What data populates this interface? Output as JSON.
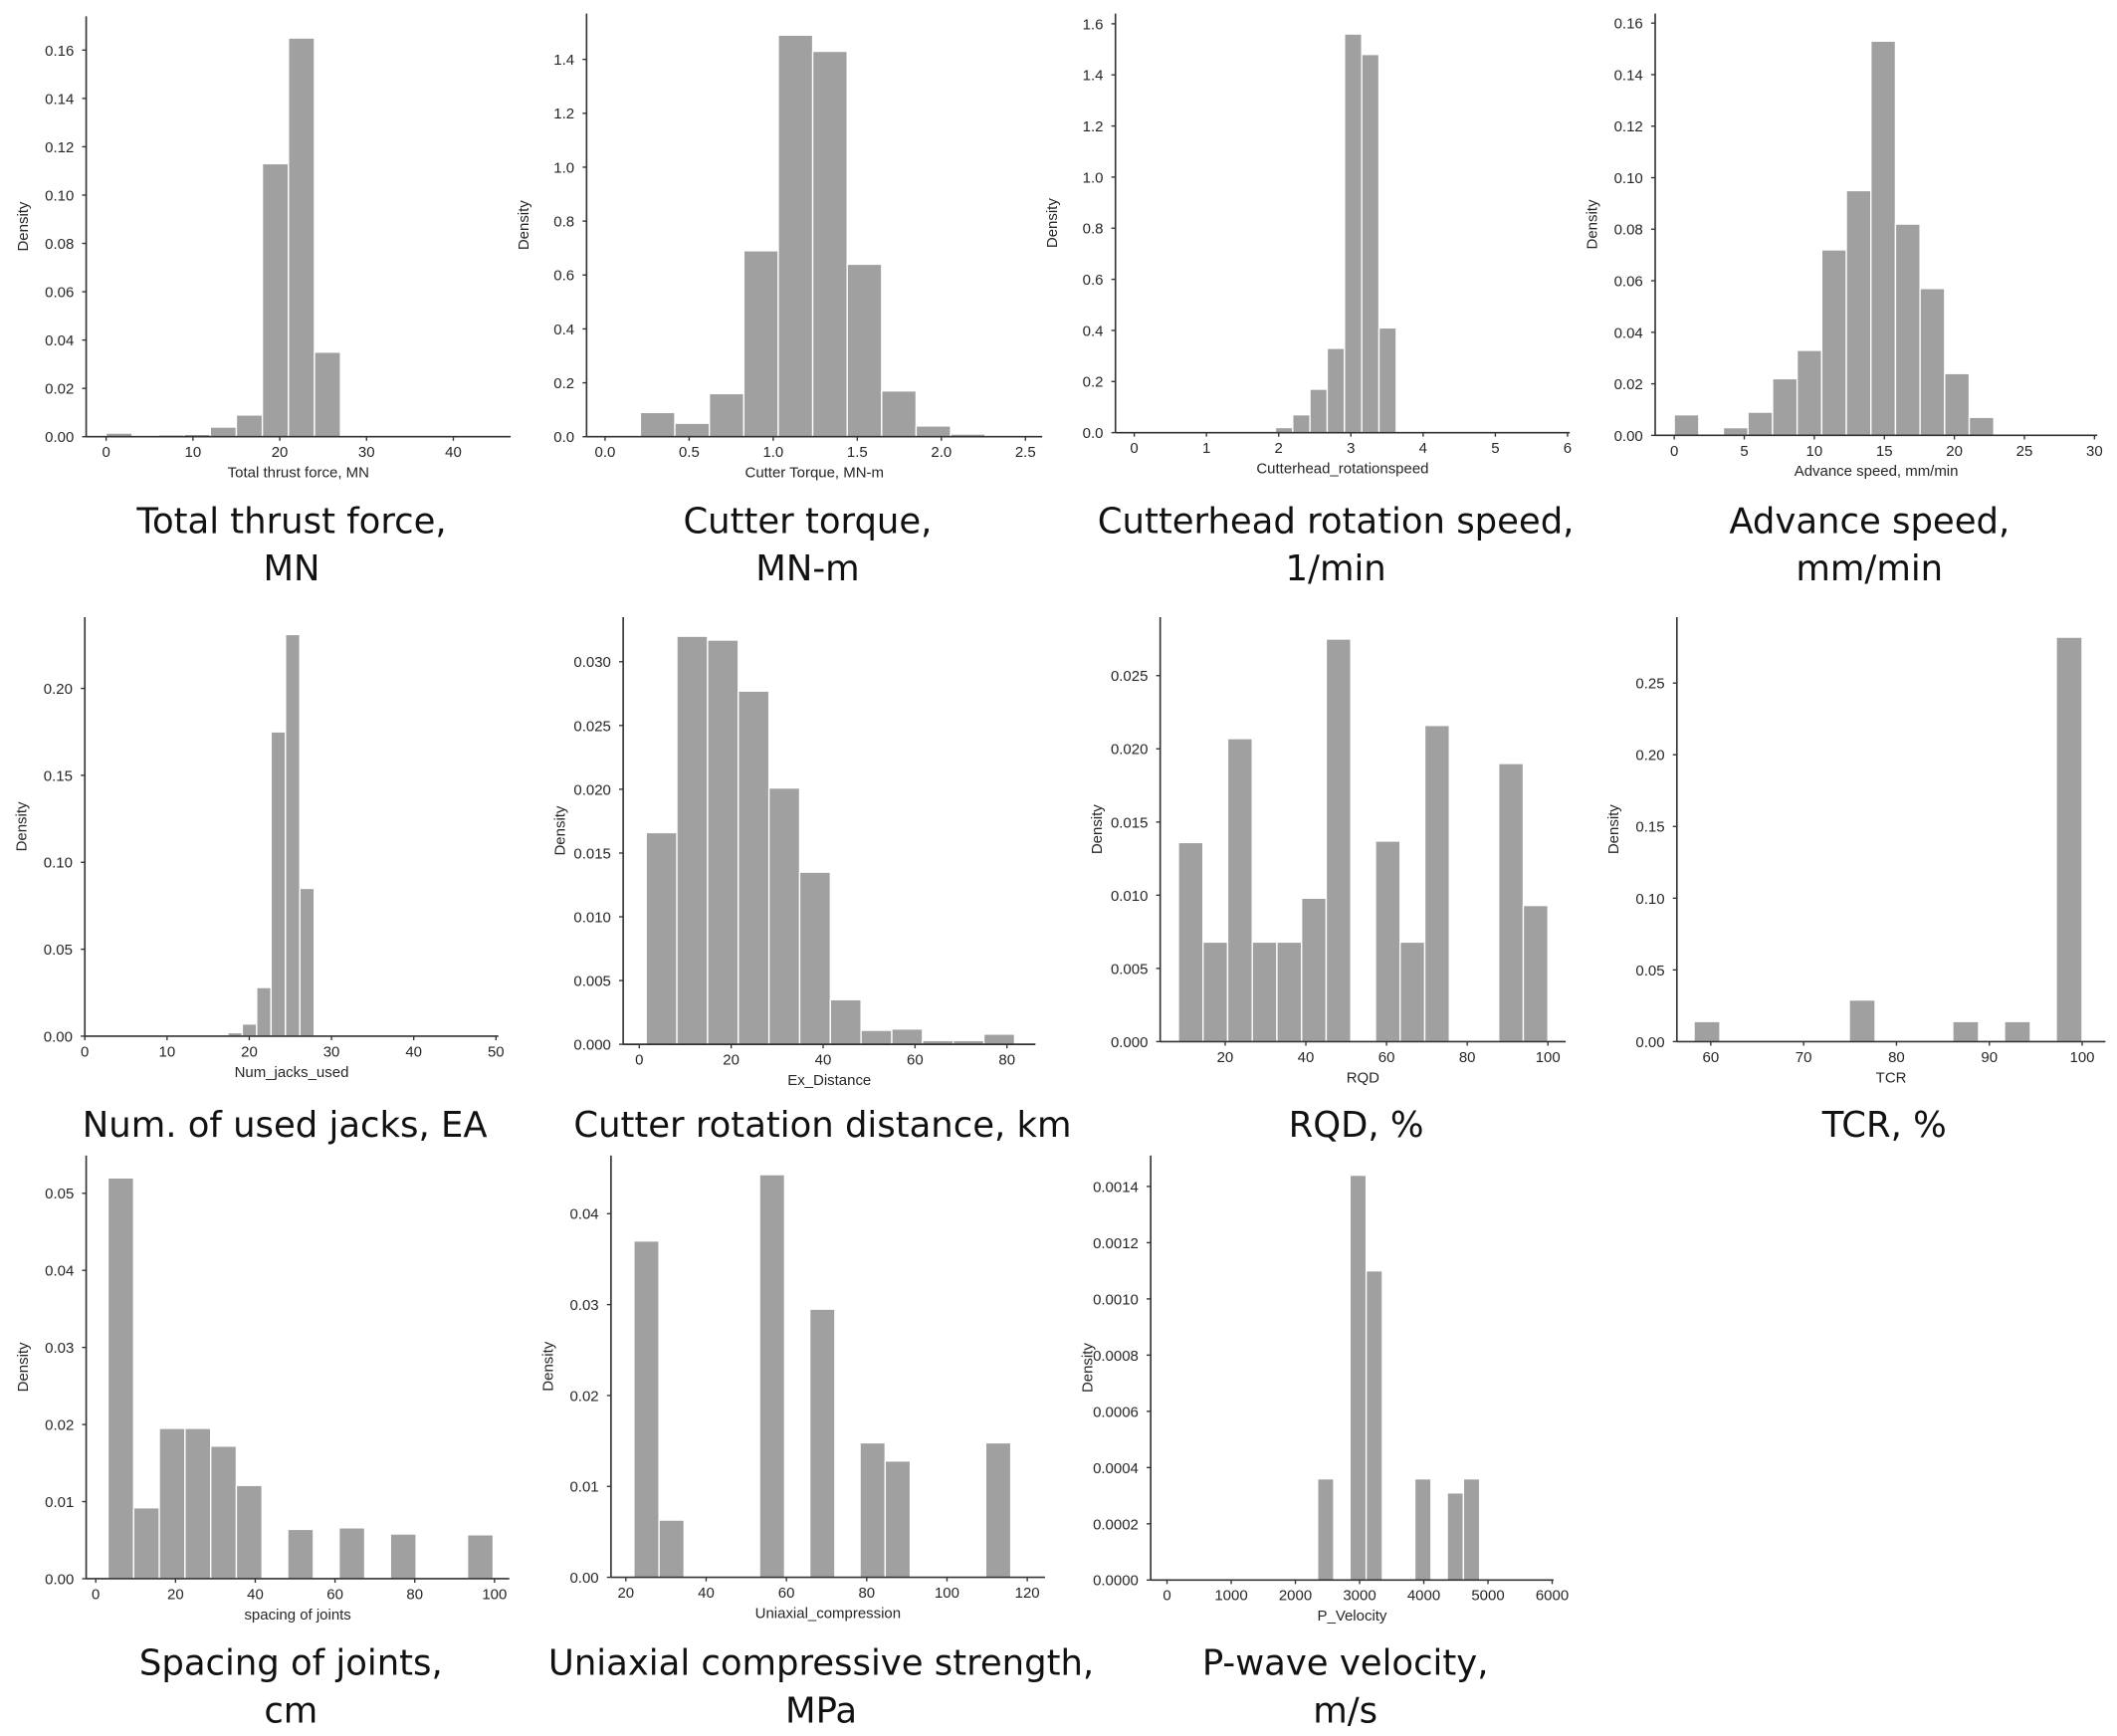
{
  "chart_data": [
    {
      "type": "histogram",
      "xlabel": "Total thrust force, MN",
      "ylabel": "Density",
      "caption": [
        "Total thrust force,",
        "MN"
      ],
      "color": "#a0a0a0",
      "bins": [
        0,
        3,
        6,
        9,
        12,
        15,
        18,
        21,
        24,
        27,
        30,
        33,
        36,
        39,
        42,
        45
      ],
      "values": [
        0.0015,
        0,
        0.0008,
        0.001,
        0.004,
        0.009,
        0.113,
        0.165,
        0.035,
        0.0005,
        0,
        0,
        0,
        0,
        0
      ],
      "xlim": [
        -2.3,
        46.6
      ],
      "ylim": [
        0,
        0.174
      ],
      "xticks": [
        0,
        10,
        20,
        30,
        40
      ],
      "yticks": [
        {
          "value": 0,
          "label": "0.00"
        },
        0.02,
        0.04,
        0.06,
        0.08,
        {
          "value": 0.1,
          "label": "0.10"
        },
        0.12,
        0.14,
        0.16
      ]
    },
    {
      "type": "histogram",
      "xlabel": "Cutter Torque, MN-m",
      "ylabel": "Density",
      "caption": [
        "Cutter torque,",
        "MN-m"
      ],
      "color": "#a0a0a0",
      "bins": [
        0.21,
        0.415,
        0.62,
        0.825,
        1.03,
        1.235,
        1.44,
        1.645,
        1.85,
        2.055,
        2.26
      ],
      "values": [
        0.09,
        0.05,
        0.16,
        0.69,
        1.49,
        1.43,
        0.64,
        0.17,
        0.04,
        0.01
      ],
      "xlim": [
        -0.11,
        2.6
      ],
      "ylim": [
        0,
        1.57
      ],
      "xticks": [
        {
          "value": 0,
          "label": "0.0"
        },
        0.5,
        {
          "value": 1,
          "label": "1.0"
        },
        1.5,
        {
          "value": 2,
          "label": "2.0"
        },
        2.5
      ],
      "yticks": [
        {
          "value": 0,
          "label": "0.0"
        },
        0.2,
        0.4,
        0.6,
        0.8,
        {
          "value": 1,
          "label": "1.0"
        },
        1.2,
        1.4
      ]
    },
    {
      "type": "histogram",
      "xlabel": "Cutterhead_rotationspeed",
      "ylabel": "Density",
      "caption": [
        "Cutterhead rotation speed,",
        "1/min"
      ],
      "color": "#a0a0a0",
      "bins": [
        1.955,
        2.194,
        2.433,
        2.672,
        2.911,
        3.15,
        3.389,
        3.628
      ],
      "values": [
        0.02,
        0.07,
        0.17,
        0.33,
        1.56,
        1.48,
        0.41
      ],
      "xlim": [
        -0.26,
        6.03
      ],
      "ylim": [
        0,
        1.64
      ],
      "xticks": [
        0,
        1,
        2,
        3,
        4,
        5,
        6
      ],
      "yticks": [
        {
          "value": 0,
          "label": "0.0"
        },
        0.2,
        0.4,
        0.6,
        0.8,
        {
          "value": 1,
          "label": "1.0"
        },
        1.2,
        1.4,
        1.6
      ]
    },
    {
      "type": "histogram",
      "xlabel": "Advance speed, mm/min",
      "ylabel": "Density",
      "caption": [
        "Advance speed,",
        "mm/min"
      ],
      "color": "#a0a0a0",
      "bins": [
        0,
        1.755,
        3.51,
        5.265,
        7.02,
        8.775,
        10.53,
        12.285,
        14.04,
        15.795,
        17.55,
        19.305,
        21.06,
        22.815
      ],
      "values": [
        0.008,
        0,
        0.003,
        0.009,
        0.022,
        0.033,
        0.072,
        0.095,
        0.153,
        0.082,
        0.057,
        0.024,
        0.007
      ],
      "xlim": [
        -1.36,
        30.2
      ],
      "ylim": [
        0,
        0.1637
      ],
      "xticks": [
        0,
        5,
        10,
        15,
        20,
        25,
        30
      ],
      "yticks": [
        {
          "value": 0,
          "label": "0.00"
        },
        0.02,
        0.04,
        0.06,
        0.08,
        {
          "value": 0.1,
          "label": "0.10"
        },
        0.12,
        0.14,
        0.16
      ]
    },
    {
      "type": "histogram",
      "xlabel": "Num_jacks_used",
      "ylabel": "Density",
      "caption": [
        "Num. of used jacks, EA"
      ],
      "color": "#a0a0a0",
      "bins": [
        17.4,
        19.15,
        20.9,
        22.65,
        24.4,
        26.15,
        27.9
      ],
      "values": [
        0.002,
        0.007,
        0.028,
        0.175,
        0.231,
        0.085
      ],
      "xlim": [
        0,
        50.3
      ],
      "ylim": [
        0,
        0.241
      ],
      "xticks": [
        0,
        10,
        20,
        30,
        40,
        50
      ],
      "yticks": [
        {
          "value": 0,
          "label": "0.00"
        },
        0.05,
        {
          "value": 0.1,
          "label": "0.10"
        },
        0.15,
        {
          "value": 0.2,
          "label": "0.20"
        }
      ]
    },
    {
      "type": "histogram",
      "xlabel": "Ex_Distance",
      "ylabel": "Density",
      "caption": [
        "Cutter rotation distance, km"
      ],
      "color": "#a0a0a0",
      "bins": [
        1.5,
        8.18,
        14.86,
        21.54,
        28.22,
        34.9,
        41.58,
        48.26,
        54.94,
        61.62,
        68.3,
        74.98,
        81.66
      ],
      "values": [
        0.0166,
        0.032,
        0.0317,
        0.0277,
        0.0201,
        0.0135,
        0.0035,
        0.0011,
        0.0012,
        0.0003,
        0.0003,
        0.0008
      ],
      "xlim": [
        -3.5,
        86.2
      ],
      "ylim": [
        0,
        0.0335
      ],
      "xticks": [
        0,
        20,
        40,
        60,
        80
      ],
      "yticks": [
        {
          "value": 0,
          "label": "0.000"
        },
        0.005,
        {
          "value": 0.01,
          "label": "0.010"
        },
        0.015,
        {
          "value": 0.02,
          "label": "0.020"
        },
        0.025,
        {
          "value": 0.03,
          "label": "0.030"
        }
      ]
    },
    {
      "type": "histogram",
      "xlabel": "RQD",
      "ylabel": "Density",
      "caption": [
        "RQD, %"
      ],
      "color": "#a0a0a0",
      "bins": [
        8.4,
        14.507,
        20.614,
        26.721,
        32.828,
        38.935,
        45.042,
        51.149,
        57.256,
        63.363,
        69.47,
        75.577,
        81.684,
        87.791,
        93.898,
        100.005
      ],
      "values": [
        0.0136,
        0.0068,
        0.0207,
        0.0068,
        0.0068,
        0.0098,
        0.0275,
        0,
        0.0137,
        0.0068,
        0.0216,
        0,
        0,
        0.019,
        0.0093
      ],
      "xlim": [
        3.9,
        104.4
      ],
      "ylim": [
        0,
        0.029
      ],
      "xticks": [
        20,
        40,
        60,
        80,
        100
      ],
      "yticks": [
        {
          "value": 0,
          "label": "0.000"
        },
        0.005,
        {
          "value": 0.01,
          "label": "0.010"
        },
        0.015,
        {
          "value": 0.02,
          "label": "0.020"
        },
        0.025
      ]
    },
    {
      "type": "histogram",
      "xlabel": "TCR",
      "ylabel": "Density",
      "caption": [
        "TCR, %"
      ],
      "color": "#a0a0a0",
      "bins": [
        58.2,
        60.986,
        63.772,
        66.558,
        69.344,
        72.13,
        74.916,
        77.702,
        80.488,
        83.274,
        86.06,
        88.846,
        91.632,
        94.418,
        97.204,
        99.99
      ],
      "values": [
        0.014,
        0,
        0,
        0,
        0,
        0,
        0.029,
        0,
        0,
        0,
        0.014,
        0,
        0.014,
        0,
        0.282
      ],
      "xlim": [
        56.35,
        102.5
      ],
      "ylim": [
        0,
        0.296
      ],
      "xticks": [
        60,
        70,
        80,
        90,
        100
      ],
      "yticks": [
        {
          "value": 0,
          "label": "0.00"
        },
        0.05,
        {
          "value": 0.1,
          "label": "0.10"
        },
        0.15,
        {
          "value": 0.2,
          "label": "0.20"
        },
        0.25
      ]
    },
    {
      "type": "histogram",
      "xlabel": "spacing of joints",
      "ylabel": "Density",
      "caption": [
        "Spacing of joints,",
        "cm"
      ],
      "color": "#a0a0a0",
      "bins": [
        3.06,
        9.5,
        15.94,
        22.38,
        28.82,
        35.26,
        41.7,
        48.14,
        54.58,
        61.02,
        67.46,
        73.9,
        80.34,
        86.78,
        93.22,
        99.66
      ],
      "values": [
        0.052,
        0.0092,
        0.0195,
        0.0195,
        0.0172,
        0.0121,
        0,
        0.0064,
        0,
        0.0066,
        0,
        0.0058,
        0,
        0,
        0.0057
      ],
      "xlim": [
        -2.4,
        103.7
      ],
      "ylim": [
        0,
        0.0549
      ],
      "xticks": [
        0,
        20,
        40,
        60,
        80,
        100
      ],
      "yticks": [
        {
          "value": 0,
          "label": "0.00"
        },
        0.01,
        0.02,
        0.03,
        0.04,
        0.05
      ]
    },
    {
      "type": "histogram",
      "xlabel": "Uniaxial_compression",
      "ylabel": "Density",
      "caption": [
        "Uniaxial compressive strength,",
        "MPa"
      ],
      "color": "#a0a0a0",
      "bins": [
        22,
        28.26,
        34.52,
        40.78,
        47.04,
        53.3,
        59.56,
        65.82,
        72.08,
        78.34,
        84.6,
        90.86,
        97.12,
        103.38,
        109.64,
        115.9
      ],
      "values": [
        0.037,
        0.0063,
        0,
        0,
        0,
        0.0443,
        0,
        0.0295,
        0,
        0.0148,
        0.0128,
        0,
        0,
        0,
        0.0148
      ],
      "xlim": [
        16.3,
        124.4
      ],
      "ylim": [
        0,
        0.0464
      ],
      "xticks": [
        20,
        40,
        60,
        80,
        100,
        120
      ],
      "yticks": [
        {
          "value": 0,
          "label": "0.00"
        },
        0.01,
        0.02,
        0.03,
        0.04
      ]
    },
    {
      "type": "histogram",
      "xlabel": "P_Velocity",
      "ylabel": "Density",
      "caption": [
        "P-wave velocity,",
        "m/s"
      ],
      "color": "#a0a0a0",
      "bins": [
        2345,
        2597.5,
        2850,
        3102.5,
        3355,
        3607.5,
        3860,
        4112.5,
        4365,
        4617.5,
        4870
      ],
      "values": [
        0.00036,
        0,
        0.00144,
        0.0011,
        0,
        0,
        0.00036,
        0,
        0.00031,
        0.00036
      ],
      "xlim": [
        -254,
        6020
      ],
      "ylim": [
        0,
        0.00151
      ],
      "xticks": [
        0,
        1000,
        2000,
        3000,
        4000,
        5000,
        6000
      ],
      "yticks": [
        {
          "value": 0,
          "label": "0.0000"
        },
        0.0002,
        0.0004,
        0.0006,
        0.0008,
        {
          "value": 0.001,
          "label": "0.0010"
        },
        0.0012,
        0.0014
      ]
    }
  ]
}
